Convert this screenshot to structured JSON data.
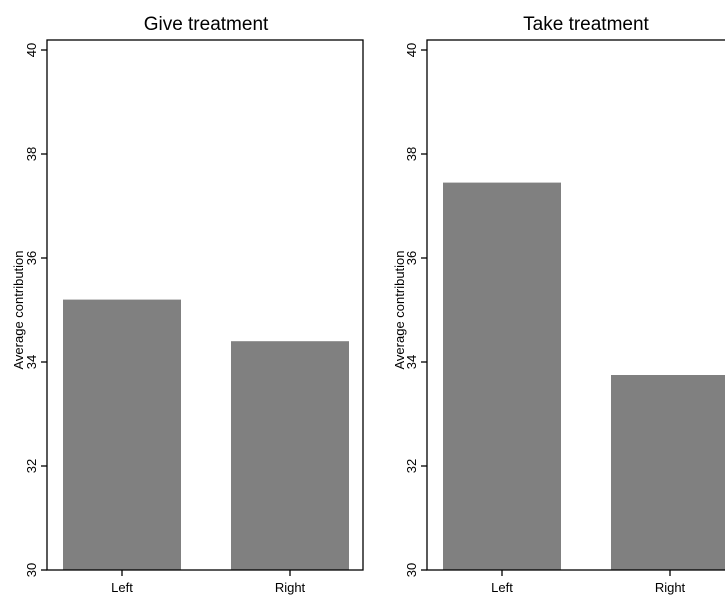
{
  "chart_data": [
    {
      "type": "bar",
      "title": "Give treatment",
      "ylabel": "Average contribution",
      "xlabel": "",
      "categories": [
        "Left",
        "Right"
      ],
      "values": [
        35.2,
        34.4
      ],
      "ylim": [
        30,
        40
      ],
      "yticks": [
        30,
        32,
        34,
        36,
        38,
        40
      ],
      "bar_color": "#808080",
      "grid": false,
      "legend": "none"
    },
    {
      "type": "bar",
      "title": "Take treatment",
      "ylabel": "Average contribution",
      "xlabel": "",
      "categories": [
        "Left",
        "Right"
      ],
      "values": [
        37.45,
        33.75
      ],
      "ylim": [
        30,
        40
      ],
      "yticks": [
        30,
        32,
        34,
        36,
        38,
        40
      ],
      "bar_color": "#808080",
      "grid": false,
      "legend": "none"
    }
  ]
}
